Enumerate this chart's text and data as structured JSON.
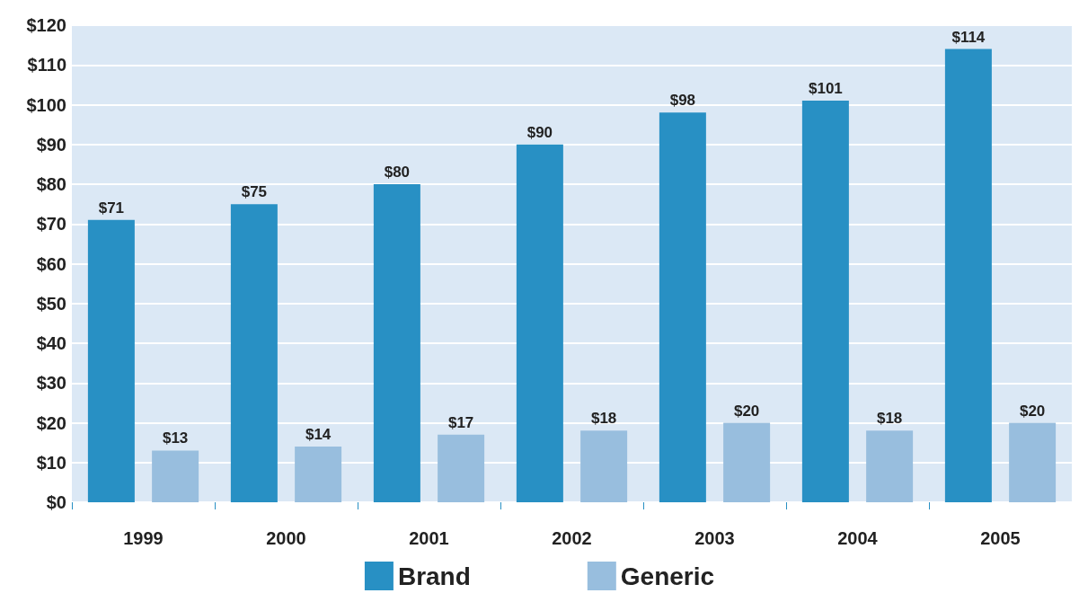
{
  "chart_data": {
    "type": "bar",
    "categories": [
      "1999",
      "2000",
      "2001",
      "2002",
      "2003",
      "2004",
      "2005"
    ],
    "series": [
      {
        "name": "Brand",
        "color": "#2890c4",
        "values": [
          71,
          75,
          80,
          90,
          98,
          101,
          114
        ],
        "value_labels": [
          "$71",
          "$75",
          "$80",
          "$90",
          "$98",
          "$101",
          "$114"
        ]
      },
      {
        "name": "Generic",
        "color": "#98bede",
        "values": [
          13,
          14,
          17,
          18,
          20,
          18,
          20
        ],
        "value_labels": [
          "$13",
          "$14",
          "$17",
          "$18",
          "$20",
          "$18",
          "$20"
        ]
      }
    ],
    "ylim": [
      0,
      120
    ],
    "yticks": [
      {
        "value": 0,
        "label": "$0"
      },
      {
        "value": 10,
        "label": "$10"
      },
      {
        "value": 20,
        "label": "$20"
      },
      {
        "value": 30,
        "label": "$30"
      },
      {
        "value": 40,
        "label": "$40"
      },
      {
        "value": 50,
        "label": "$50"
      },
      {
        "value": 60,
        "label": "$60"
      },
      {
        "value": 70,
        "label": "$70"
      },
      {
        "value": 80,
        "label": "$80"
      },
      {
        "value": 90,
        "label": "$90"
      },
      {
        "value": 100,
        "label": "$100"
      },
      {
        "value": 110,
        "label": "$110"
      },
      {
        "value": 120,
        "label": "$120"
      }
    ],
    "grid": "y",
    "legend": "bottom"
  }
}
